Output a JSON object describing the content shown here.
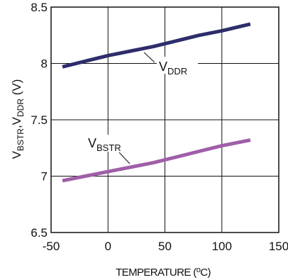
{
  "chart_data": {
    "type": "line",
    "title": "",
    "xlabel": "TEMPERATURE (",
    "xlabel_sup": "o",
    "xlabel_tail": "C)",
    "ylabel": "V",
    "ylabel_sub1": "BSTR",
    "ylabel_mid": ",V",
    "ylabel_sub2": "DDR",
    "ylabel_tail": " (V)",
    "xlim": [
      -50,
      150
    ],
    "ylim": [
      6.5,
      8.5
    ],
    "x_ticks": [
      -50,
      0,
      50,
      100,
      150
    ],
    "y_ticks": [
      6.5,
      7,
      7.5,
      8,
      8.5
    ],
    "x_tick_labels": [
      "-50",
      "0",
      "50",
      "100",
      "150"
    ],
    "y_tick_labels": [
      "6.5",
      "7",
      "7.5",
      "8",
      "8.5"
    ],
    "grid": true,
    "series": [
      {
        "name": "V",
        "name_sub": "DDR",
        "color": "#2e2d6b",
        "x": [
          -40,
          -20,
          0,
          20,
          40,
          60,
          80,
          100,
          125
        ],
        "y": [
          7.97,
          8.02,
          8.07,
          8.11,
          8.15,
          8.2,
          8.25,
          8.29,
          8.35
        ]
      },
      {
        "name": "V",
        "name_sub": "BSTR",
        "color": "#a05ea8",
        "x": [
          -40,
          -20,
          0,
          20,
          40,
          60,
          80,
          100,
          125
        ],
        "y": [
          6.96,
          7.0,
          7.04,
          7.08,
          7.12,
          7.17,
          7.22,
          7.27,
          7.32
        ]
      }
    ]
  }
}
